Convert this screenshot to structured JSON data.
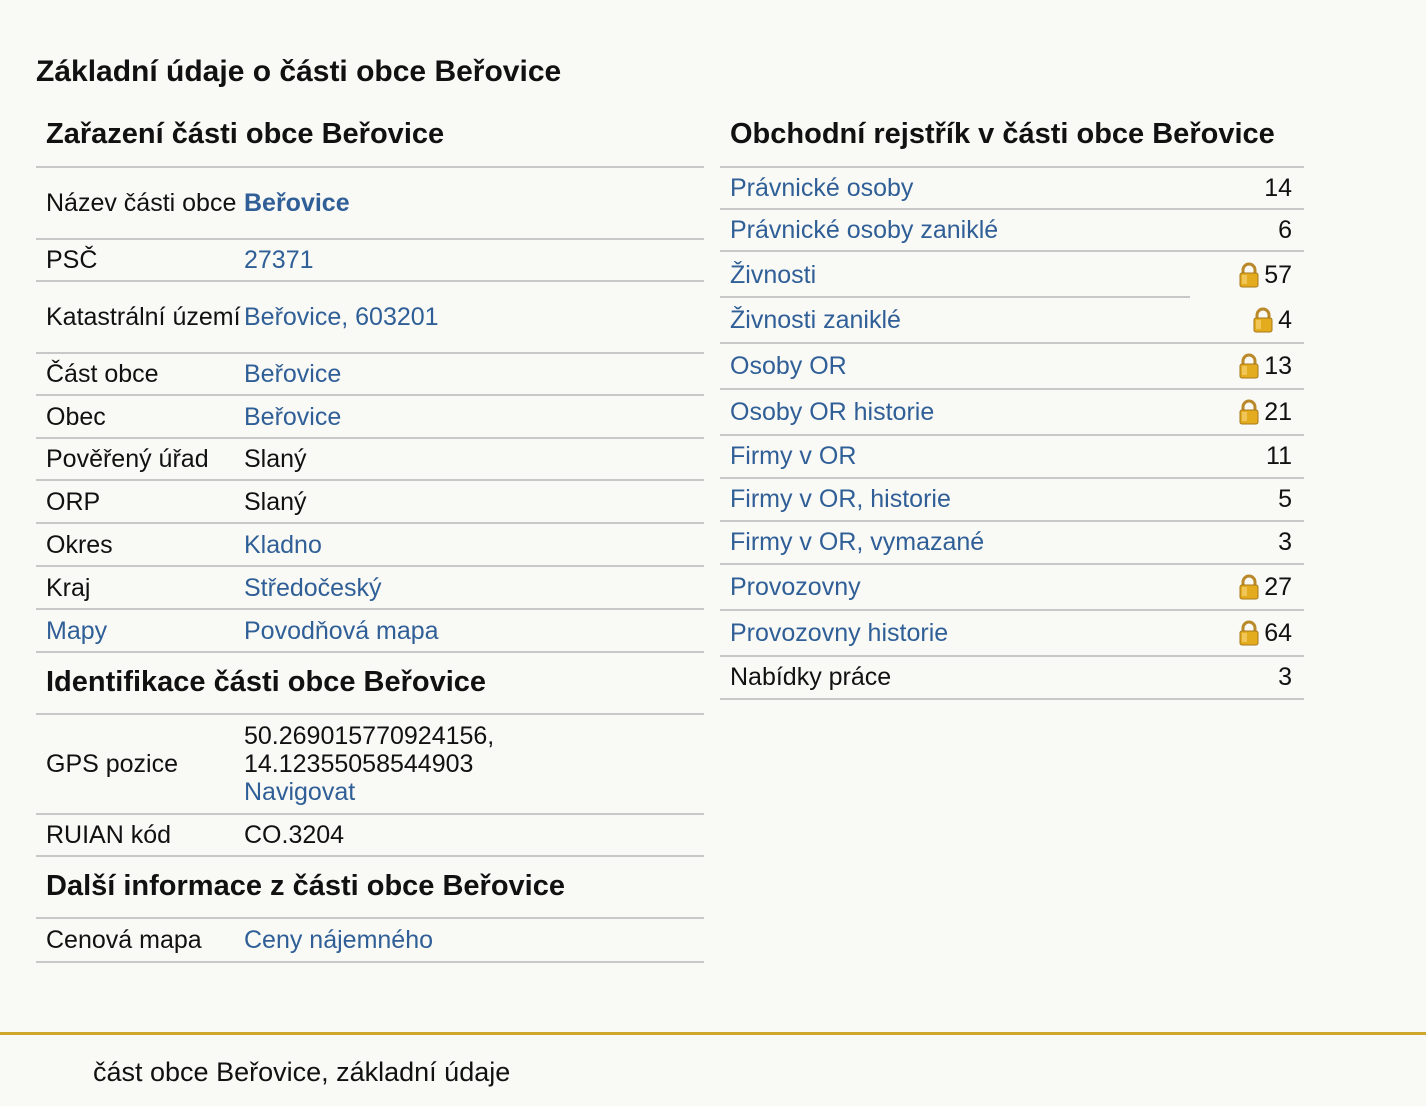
{
  "page_title": "Základní údaje o části obce Beřovice",
  "zarazeni": {
    "title": "Zařazení části obce Beřovice",
    "rows": [
      {
        "key": "Název části obce",
        "value": "Beřovice"
      },
      {
        "key": "PSČ",
        "value": "27371"
      },
      {
        "key": "Katastrální území",
        "value": "Beřovice, 603201"
      },
      {
        "key": "Část obce",
        "value": "Beřovice"
      },
      {
        "key": "Obec",
        "value": "Beřovice"
      },
      {
        "key": "Pověřený úřad",
        "value": "Slaný"
      },
      {
        "key": "ORP",
        "value": "Slaný"
      },
      {
        "key": "Okres",
        "value": "Kladno"
      },
      {
        "key": "Kraj",
        "value": "Středočeský"
      },
      {
        "key": "Mapy",
        "value": "Povodňová mapa"
      }
    ]
  },
  "identifikace": {
    "title": "Identifikace části obce Beřovice",
    "gps_label": "GPS pozice",
    "gps_lat": "50.269015770924156,",
    "gps_lon": "14.12355058544903",
    "navigate": "Navigovat",
    "ruian_label": "RUIAN kód",
    "ruian_value": "CO.3204"
  },
  "dalsi": {
    "title": "Další informace z části obce Beřovice",
    "label": "Cenová mapa",
    "value": "Ceny nájemného"
  },
  "rejstrik": {
    "title": "Obchodní rejstřík v části obce Beřovice",
    "rows": [
      {
        "name": "Právnické osoby",
        "value": "14",
        "locked": false
      },
      {
        "name": "Právnické osoby zaniklé",
        "value": "6",
        "locked": false
      },
      {
        "name": "Živnosti",
        "value": "57",
        "locked": true
      },
      {
        "name": "Živnosti zaniklé",
        "value": "4",
        "locked": true
      },
      {
        "name": "Osoby OR",
        "value": "13",
        "locked": true
      },
      {
        "name": "Osoby OR historie",
        "value": "21",
        "locked": true
      },
      {
        "name": "Firmy v OR",
        "value": "11",
        "locked": false
      },
      {
        "name": "Firmy v OR, historie",
        "value": "5",
        "locked": false
      },
      {
        "name": "Firmy v OR, vymazané",
        "value": "3",
        "locked": false
      },
      {
        "name": "Provozovny",
        "value": "27",
        "locked": true
      },
      {
        "name": "Provozovny historie",
        "value": "64",
        "locked": true
      },
      {
        "name": "Nabídky práce",
        "value": "3",
        "locked": false
      }
    ]
  },
  "footer": "část obce Beřovice, základní údaje",
  "colors": {
    "link": "#2f5f96",
    "accent": "#cfa72c",
    "lock": "#e0a91a"
  }
}
